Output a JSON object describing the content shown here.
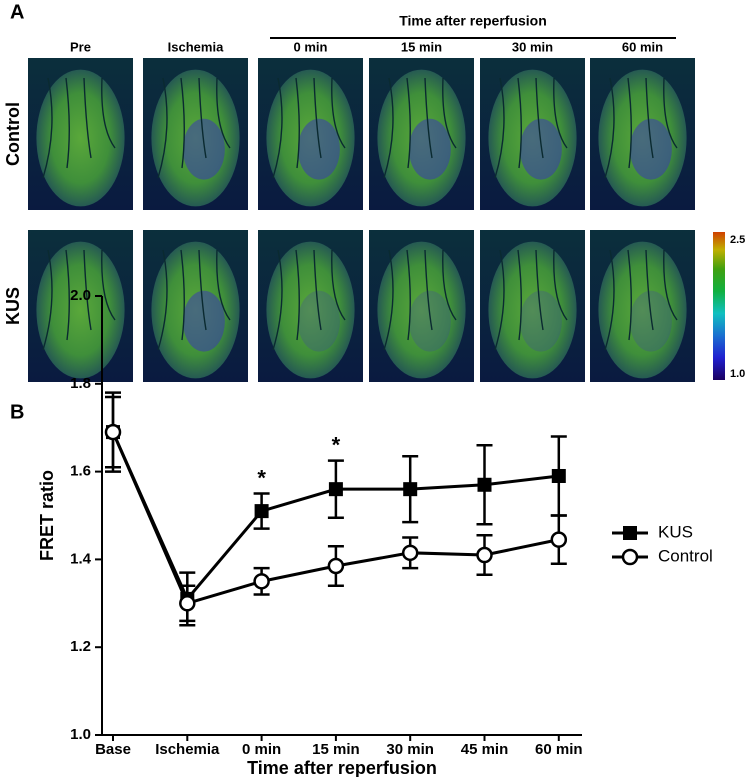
{
  "panel_a": {
    "label": "A",
    "group_title": "Time after reperfusion",
    "columns": [
      "Pre",
      "Ischemia",
      "0 min",
      "15 min",
      "30 min",
      "60 min"
    ],
    "rows": [
      "Control",
      "KUS"
    ],
    "colorbar": {
      "max": "2.5",
      "min": "1.0"
    }
  },
  "chart_data": {
    "type": "line",
    "panel_label": "B",
    "categories": [
      "Base",
      "Ischemia",
      "0 min",
      "15 min",
      "30 min",
      "45 min",
      "60 min"
    ],
    "x_label": "Time after reperfusion",
    "y_label": "FRET ratio",
    "ylim": [
      1.0,
      2.0
    ],
    "yticks": [
      {
        "value": 1.0,
        "label": "1.0"
      },
      1.2,
      1.4,
      1.6,
      1.8,
      {
        "value": 2.0,
        "label": "2.0"
      }
    ],
    "series": [
      {
        "name": "KUS",
        "color": "#000000",
        "marker": "square",
        "values": [
          1.69,
          1.31,
          1.51,
          1.56,
          1.56,
          1.57,
          1.59
        ],
        "errors": [
          0.09,
          0.06,
          0.04,
          0.065,
          0.075,
          0.09,
          0.09
        ]
      },
      {
        "name": "Control",
        "color": "#000000",
        "marker": "circle",
        "values": [
          1.69,
          1.3,
          1.35,
          1.385,
          1.415,
          1.41,
          1.445
        ],
        "errors": [
          0.08,
          0.04,
          0.03,
          0.045,
          0.035,
          0.045,
          0.055
        ]
      }
    ],
    "annotations": [
      {
        "text": "*",
        "x": "0 min"
      },
      {
        "text": "*",
        "x": "15 min"
      }
    ]
  }
}
